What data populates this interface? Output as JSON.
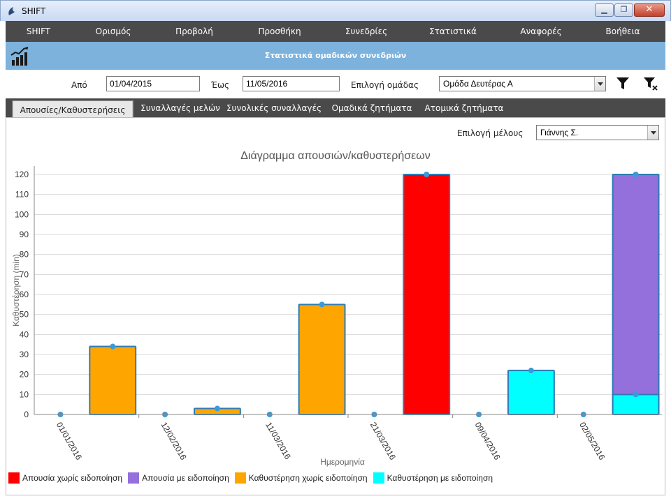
{
  "window": {
    "title": "SHIFT"
  },
  "menu": [
    "SHIFT",
    "Ορισμός",
    "Προβολή",
    "Προσθήκη",
    "Συνεδρίες",
    "Στατιστικά",
    "Αναφορές",
    "Βοήθεια"
  ],
  "header": {
    "title": "Στατιστικά ομαδικών συνεδριών"
  },
  "filters": {
    "from_label": "Από",
    "from_value": "01/04/2015",
    "to_label": "Έως",
    "to_value": "11/05/2016",
    "group_label": "Επιλογή ομάδας",
    "group_value": "Ομάδα Δευτέρας Α"
  },
  "tabs": [
    "Απουσίες/Καθυστερήσεις",
    "Συναλλαγές μελών",
    "Συνολικές συναλλαγές",
    "Ομαδικά ζητήματα",
    "Ατομικά ζητήματα"
  ],
  "member": {
    "label": "Επιλογή μέλους",
    "value": "Γιάννης Σ."
  },
  "colors": {
    "absence_no_notice": "#ff0000",
    "absence_with_notice": "#9370db",
    "delay_no_notice": "#ffa500",
    "delay_with_notice": "#00ffff",
    "bar_border": "#2e7bb4",
    "point": "#3a9ad9",
    "menu_bg": "#4a4a4a",
    "header_bg": "#7db2dd"
  },
  "chart_data": {
    "type": "bar",
    "title": "Διάγραμμα απουσιών/καθυστερήσεων",
    "xlabel": "Ημερομηνία",
    "ylabel": "Καθυστέρηση (min)",
    "ylim": [
      0,
      120
    ],
    "yticks": [
      0,
      10,
      20,
      30,
      40,
      50,
      60,
      70,
      80,
      90,
      100,
      110,
      120
    ],
    "grid": true,
    "legend_position": "bottom-left",
    "categories": [
      "01/01/2016",
      "12/02/2016",
      "11/03/2016",
      "21/03/2016",
      "09/04/2016",
      "02/05/2016"
    ],
    "series": [
      {
        "name": "Απουσία χωρίς ειδοποίηση",
        "color_key": "absence_no_notice",
        "values": [
          0,
          0,
          0,
          120,
          0,
          0
        ]
      },
      {
        "name": "Απουσία με ειδοποίηση",
        "color_key": "absence_with_notice",
        "values": [
          0,
          0,
          0,
          0,
          0,
          120
        ]
      },
      {
        "name": "Καθυστέρηση χωρίς ειδοποίηση",
        "color_key": "delay_no_notice",
        "values": [
          34,
          3,
          55,
          0,
          0,
          0
        ]
      },
      {
        "name": "Καθυστέρηση με ειδοποίηση",
        "color_key": "delay_with_notice",
        "values": [
          0,
          0,
          0,
          0,
          22,
          10
        ]
      }
    ]
  }
}
